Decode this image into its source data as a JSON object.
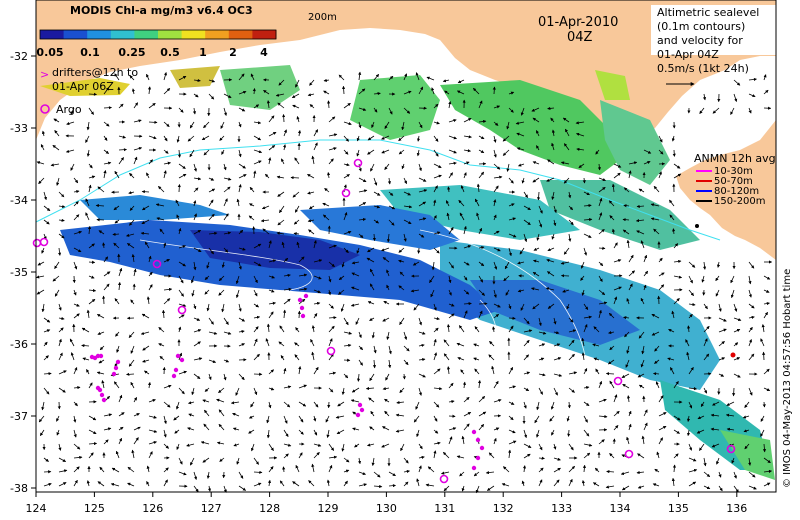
{
  "title": "MODIS Chl-a mg/m3 v6.4 OC3",
  "colorbar": {
    "ticks": [
      "0.05",
      "0.1",
      "0.25",
      "0.5",
      "1",
      "2",
      "4"
    ],
    "colors": [
      "#1a1aa0",
      "#1a50d0",
      "#2090e0",
      "#30c0d0",
      "#40d080",
      "#a0e040",
      "#f0e020",
      "#f0a020",
      "#e06010",
      "#c02010"
    ]
  },
  "contour_label": "200m",
  "date": "01-Apr-2010",
  "time": "04Z",
  "drifters_legend": {
    "line1": "drifters@12h to",
    "line2": "01-Apr 06Z"
  },
  "argo_legend": "Argo",
  "altimetry_legend": {
    "lines": [
      "Altimetric sealevel",
      "(0.1m contours)",
      "and velocity for",
      "01-Apr 04Z",
      "0.5m/s (1kt 24h)"
    ]
  },
  "anmn_legend": {
    "title": "ANMN 12h avg",
    "items": [
      {
        "label": "10-30m",
        "color": "#ff00ff"
      },
      {
        "label": "50-70m",
        "color": "#e00000"
      },
      {
        "label": "80-120m",
        "color": "#0000ff"
      },
      {
        "label": "150-200m",
        "color": "#000000"
      }
    ]
  },
  "credit": "© IMOS 04-May-2013 04:57:56 Hobart time",
  "axes": {
    "lon_ticks": [
      "124",
      "125",
      "126",
      "127",
      "128",
      "129",
      "130",
      "131",
      "132",
      "133",
      "134",
      "135",
      "136"
    ],
    "lat_ticks": [
      "-32",
      "-33",
      "-34",
      "-35",
      "-36",
      "-37",
      "-38"
    ]
  },
  "colors": {
    "land": "#f8c89a",
    "ocean": "#ffffff",
    "contour": "#40e0f0",
    "drifter": "#e000e0"
  }
}
